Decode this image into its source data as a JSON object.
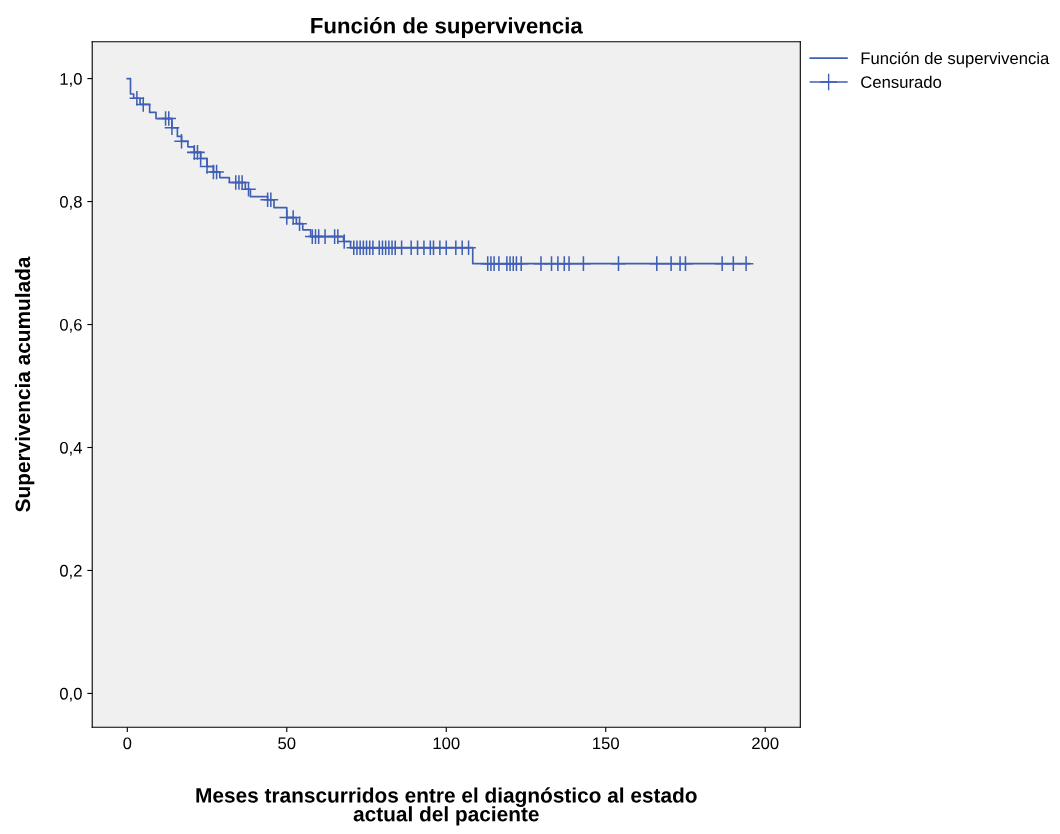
{
  "chart_data": {
    "type": "step",
    "title": "Función de supervivencia",
    "xlabel": "Meses transcurridos entre el diagnóstico al estado\nactual del paciente",
    "ylabel": "Supervivencia acumulada",
    "xlim": [
      -11,
      211
    ],
    "xticks": [
      0,
      50,
      100,
      150,
      200
    ],
    "ylim": [
      -0.055,
      1.06
    ],
    "yticks": [
      {
        "value": 0,
        "label": "0,0"
      },
      {
        "value": 0.2,
        "label": "0,2"
      },
      {
        "value": 0.4,
        "label": "0,4"
      },
      {
        "value": 0.6,
        "label": "0,6"
      },
      {
        "value": 0.8,
        "label": "0,8"
      },
      {
        "value": 1.0,
        "label": "1,0"
      }
    ],
    "grid": false,
    "legend": "top right",
    "series": [
      {
        "name": "Función de supervivencia",
        "color": "#3f5fb4",
        "marker": "none",
        "x": [
          0,
          1,
          2,
          4,
          7,
          9,
          14,
          15.7,
          17,
          19,
          21,
          23,
          25,
          27,
          29,
          32,
          37,
          38.6,
          44,
          46,
          50,
          53,
          55,
          57.5,
          67.8,
          70,
          108.3,
          195
        ],
        "values": [
          1.0,
          0.975,
          0.968,
          0.958,
          0.945,
          0.935,
          0.92,
          0.906,
          0.898,
          0.889,
          0.88,
          0.87,
          0.857,
          0.848,
          0.839,
          0.831,
          0.82,
          0.808,
          0.803,
          0.79,
          0.774,
          0.764,
          0.754,
          0.743,
          0.735,
          0.725,
          0.699,
          0.699
        ]
      },
      {
        "name": "Censurado",
        "type": "scatter",
        "color": "#3f5fb4",
        "marker": "cross",
        "x": [
          3,
          5,
          12,
          13,
          14,
          17,
          21,
          22,
          23,
          25,
          27,
          28,
          34,
          35,
          36,
          38,
          44,
          45,
          50,
          52,
          54,
          58,
          59,
          60,
          62,
          65,
          66,
          68,
          71,
          72,
          73,
          74,
          75,
          76,
          77,
          79,
          80,
          81,
          82,
          83,
          84,
          86,
          89,
          91,
          93,
          95,
          96,
          98,
          100,
          103,
          105,
          107,
          113,
          114,
          115,
          116.5,
          119,
          120,
          121,
          122,
          123.5,
          129.7,
          133,
          135,
          137,
          138.5,
          143,
          154,
          166,
          170.5,
          173.3,
          175,
          186.5,
          190,
          194
        ],
        "values": [
          0.968,
          0.958,
          0.935,
          0.935,
          0.92,
          0.898,
          0.88,
          0.88,
          0.87,
          0.857,
          0.848,
          0.848,
          0.831,
          0.831,
          0.831,
          0.82,
          0.803,
          0.803,
          0.774,
          0.774,
          0.764,
          0.743,
          0.743,
          0.743,
          0.743,
          0.743,
          0.743,
          0.735,
          0.725,
          0.725,
          0.725,
          0.725,
          0.725,
          0.725,
          0.725,
          0.725,
          0.725,
          0.725,
          0.725,
          0.725,
          0.725,
          0.725,
          0.725,
          0.725,
          0.725,
          0.725,
          0.725,
          0.725,
          0.725,
          0.725,
          0.725,
          0.725,
          0.699,
          0.699,
          0.699,
          0.699,
          0.699,
          0.699,
          0.699,
          0.699,
          0.699,
          0.699,
          0.699,
          0.699,
          0.699,
          0.699,
          0.699,
          0.699,
          0.699,
          0.699,
          0.699,
          0.699,
          0.699,
          0.699,
          0.699
        ]
      }
    ]
  }
}
